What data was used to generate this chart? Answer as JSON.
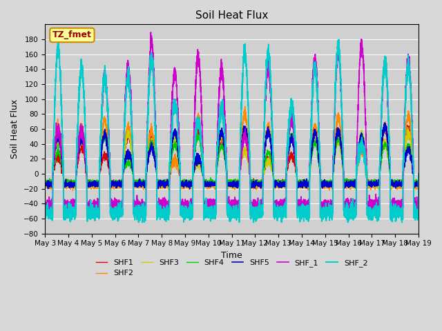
{
  "title": "Soil Heat Flux",
  "xlabel": "Time",
  "ylabel": "Soil Heat Flux",
  "ylim": [
    -80,
    200
  ],
  "yticks": [
    -80,
    -60,
    -40,
    -20,
    0,
    20,
    40,
    60,
    80,
    100,
    120,
    140,
    160,
    180
  ],
  "background_color": "#d8d8d8",
  "plot_bg_color": "#d0d0d0",
  "grid_color": "#ffffff",
  "annotation_text": "TZ_fmet",
  "annotation_bg": "#ffff99",
  "annotation_border": "#cc8800",
  "annotation_text_color": "#990000",
  "series": [
    {
      "name": "SHF1",
      "color": "#dd0000",
      "lw": 1.0
    },
    {
      "name": "SHF2",
      "color": "#ff8800",
      "lw": 1.0
    },
    {
      "name": "SHF3",
      "color": "#cccc00",
      "lw": 1.0
    },
    {
      "name": "SHF4",
      "color": "#00cc00",
      "lw": 1.0
    },
    {
      "name": "SHF5",
      "color": "#0000cc",
      "lw": 1.2
    },
    {
      "name": "SHF_1",
      "color": "#cc00cc",
      "lw": 1.2
    },
    {
      "name": "SHF_2",
      "color": "#00cccc",
      "lw": 1.4
    }
  ],
  "n_days": 16,
  "start_day": 3,
  "samples_per_day": 288
}
